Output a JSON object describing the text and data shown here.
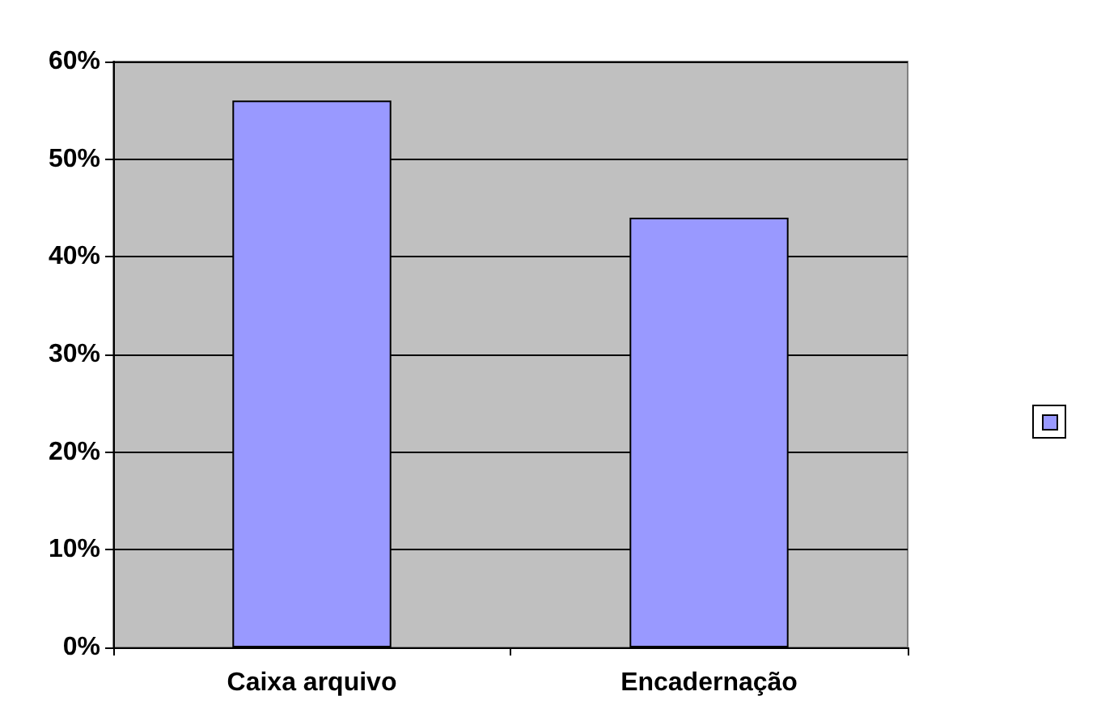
{
  "chart_data": {
    "type": "bar",
    "categories": [
      "Caixa arquivo",
      "Encadernação"
    ],
    "series": [
      {
        "color": "#9999ff",
        "values": [
          56,
          44
        ]
      }
    ],
    "ylim": [
      0,
      60
    ],
    "yticks": [
      {
        "value": 0,
        "label": "0%"
      },
      {
        "value": 10,
        "label": "10%"
      },
      {
        "value": 20,
        "label": "20%"
      },
      {
        "value": 30,
        "label": "30%"
      },
      {
        "value": 40,
        "label": "40%"
      },
      {
        "value": 50,
        "label": "50%"
      },
      {
        "value": 60,
        "label": "60%"
      }
    ],
    "grid": "y"
  }
}
